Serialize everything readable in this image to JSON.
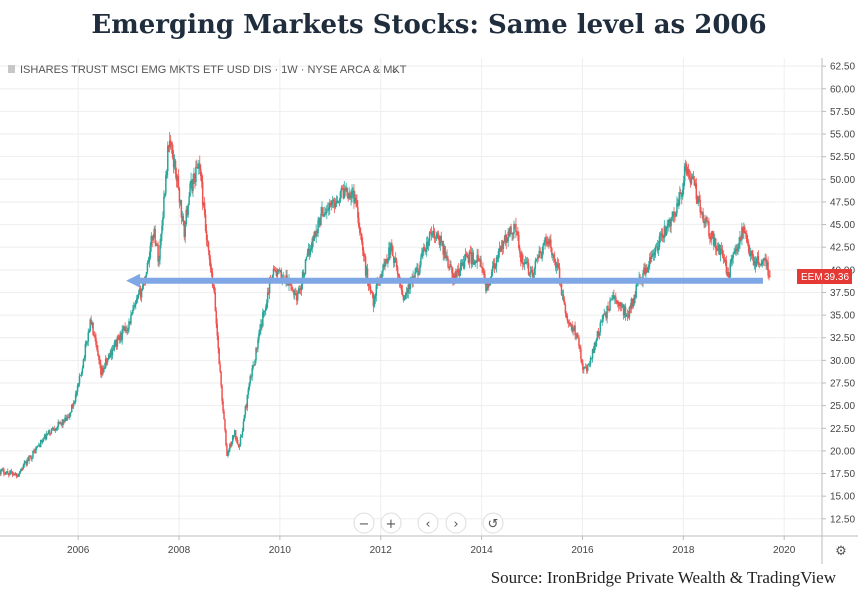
{
  "title": "Emerging Markets Stocks: Same level as 2006",
  "source": "Source: IronBridge Private Wealth & TradingView",
  "chart_data": {
    "type": "candlestick",
    "symbol_label": "ISHARES TRUST MSCI EMG MKTS ETF USD DIS · 1W · NYSE ARCA & MKT",
    "ticker": "EEM",
    "last_price": "39.36",
    "grid": true,
    "y_axis_position": "right",
    "xlim": [
      2004.45,
      2020.75
    ],
    "ylim": [
      10.6,
      63.4
    ],
    "x_ticks": [
      "2006",
      "2008",
      "2010",
      "2012",
      "2014",
      "2016",
      "2018",
      "2020"
    ],
    "x_tick_values": [
      2006,
      2008,
      2010,
      2012,
      2014,
      2016,
      2018,
      2020
    ],
    "y_ticks": [
      "12.50",
      "15.00",
      "17.50",
      "20.00",
      "22.50",
      "25.00",
      "27.50",
      "30.00",
      "32.50",
      "35.00",
      "37.50",
      "40.00",
      "42.50",
      "45.00",
      "47.50",
      "50.00",
      "52.50",
      "55.00",
      "57.50",
      "60.00",
      "62.50"
    ],
    "y_tick_values": [
      12.5,
      15,
      17.5,
      20,
      22.5,
      25,
      27.5,
      30,
      32.5,
      35,
      37.5,
      40,
      42.5,
      45,
      47.5,
      50,
      52.5,
      55,
      57.5,
      60,
      62.5
    ],
    "price_path": [
      [
        2004.45,
        17.8
      ],
      [
        2004.8,
        17.4
      ],
      [
        2005.2,
        20.5
      ],
      [
        2005.5,
        22.5
      ],
      [
        2005.8,
        23.5
      ],
      [
        2006.0,
        27.0
      ],
      [
        2006.25,
        34.5
      ],
      [
        2006.45,
        28.5
      ],
      [
        2006.7,
        31.5
      ],
      [
        2007.0,
        34.0
      ],
      [
        2007.3,
        38.5
      ],
      [
        2007.5,
        44.5
      ],
      [
        2007.6,
        41.0
      ],
      [
        2007.8,
        54.5
      ],
      [
        2007.95,
        50.5
      ],
      [
        2008.1,
        44.0
      ],
      [
        2008.2,
        48.5
      ],
      [
        2008.4,
        52.0
      ],
      [
        2008.55,
        43.0
      ],
      [
        2008.7,
        37.0
      ],
      [
        2008.85,
        26.0
      ],
      [
        2008.95,
        19.5
      ],
      [
        2009.1,
        22.0
      ],
      [
        2009.2,
        20.5
      ],
      [
        2009.4,
        27.5
      ],
      [
        2009.6,
        33.0
      ],
      [
        2009.85,
        40.0
      ],
      [
        2010.1,
        39.0
      ],
      [
        2010.35,
        37.0
      ],
      [
        2010.6,
        42.5
      ],
      [
        2010.85,
        46.5
      ],
      [
        2011.0,
        47.0
      ],
      [
        2011.3,
        49.0
      ],
      [
        2011.5,
        48.0
      ],
      [
        2011.7,
        40.0
      ],
      [
        2011.85,
        36.5
      ],
      [
        2012.0,
        39.5
      ],
      [
        2012.2,
        42.5
      ],
      [
        2012.45,
        37.0
      ],
      [
        2012.7,
        39.5
      ],
      [
        2013.0,
        44.0
      ],
      [
        2013.2,
        43.0
      ],
      [
        2013.45,
        39.0
      ],
      [
        2013.7,
        41.5
      ],
      [
        2013.95,
        41.0
      ],
      [
        2014.1,
        38.0
      ],
      [
        2014.4,
        42.5
      ],
      [
        2014.65,
        45.0
      ],
      [
        2014.8,
        41.0
      ],
      [
        2015.0,
        39.5
      ],
      [
        2015.3,
        43.5
      ],
      [
        2015.5,
        40.5
      ],
      [
        2015.7,
        34.0
      ],
      [
        2015.9,
        33.0
      ],
      [
        2016.0,
        29.5
      ],
      [
        2016.1,
        29.0
      ],
      [
        2016.3,
        33.0
      ],
      [
        2016.6,
        37.0
      ],
      [
        2016.9,
        35.0
      ],
      [
        2017.1,
        38.5
      ],
      [
        2017.4,
        41.5
      ],
      [
        2017.7,
        45.0
      ],
      [
        2017.95,
        48.0
      ],
      [
        2018.05,
        51.5
      ],
      [
        2018.2,
        49.5
      ],
      [
        2018.4,
        46.0
      ],
      [
        2018.6,
        43.0
      ],
      [
        2018.75,
        42.0
      ],
      [
        2018.9,
        39.5
      ],
      [
        2019.05,
        42.5
      ],
      [
        2019.2,
        44.5
      ],
      [
        2019.4,
        40.5
      ],
      [
        2019.6,
        41.5
      ],
      [
        2019.72,
        39.36
      ]
    ],
    "support_line": {
      "x": [
        2006.95,
        2019.58
      ],
      "y": 38.8,
      "color": "#7fa7e6"
    },
    "colors": {
      "up": "#26a69a",
      "down": "#ef5350",
      "badge": "#e53935",
      "grid": "#eeeeee"
    }
  },
  "controls": {
    "zoom_out": "−",
    "zoom_in": "+",
    "scroll_left": "‹",
    "scroll_right": "›",
    "reset": "↺",
    "settings": "⚙"
  }
}
